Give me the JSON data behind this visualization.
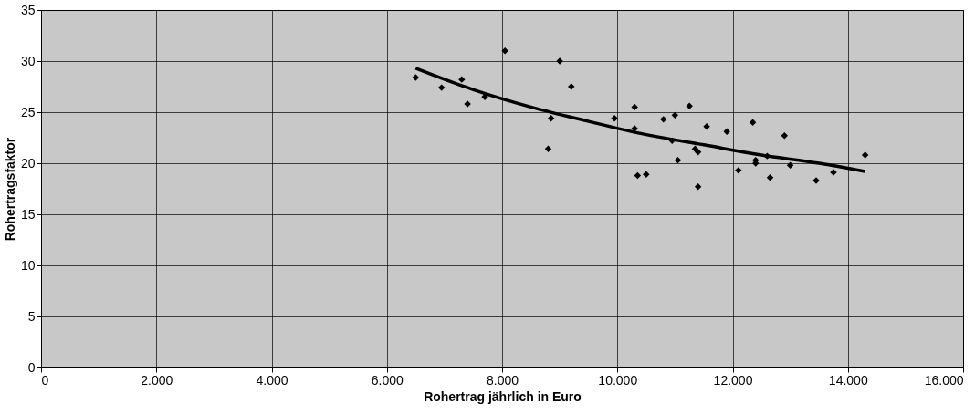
{
  "chart_data": {
    "type": "scatter",
    "xlabel": "Rohertrag jährlich in Euro",
    "ylabel": "Rohertragsfaktor",
    "xlim": [
      0,
      16000
    ],
    "ylim": [
      0,
      35
    ],
    "xticks": [
      {
        "value": 0,
        "label": "0"
      },
      {
        "value": 2000,
        "label": "2.000"
      },
      {
        "value": 4000,
        "label": "4.000"
      },
      {
        "value": 6000,
        "label": "6.000"
      },
      {
        "value": 8000,
        "label": "8.000"
      },
      {
        "value": 10000,
        "label": "10.000"
      },
      {
        "value": 12000,
        "label": "12.000"
      },
      {
        "value": 14000,
        "label": "14.000"
      },
      {
        "value": 16000,
        "label": "16.000"
      }
    ],
    "yticks": [
      0,
      5,
      10,
      15,
      20,
      25,
      30,
      35
    ],
    "grid": true,
    "marker": "diamond",
    "series": [
      {
        "color": "#000000",
        "x": [
          6500,
          6950,
          7300,
          7400,
          7700,
          8050,
          8800,
          8850,
          9000,
          9200,
          9950,
          10300,
          10300,
          10350,
          10500,
          10800,
          10950,
          11000,
          11050,
          11250,
          11350,
          11400,
          11400,
          11550,
          11900,
          12100,
          12350,
          12400,
          12400,
          12600,
          12650,
          12900,
          13000,
          13450,
          13750,
          14300
        ],
        "values": [
          28.4,
          27.4,
          28.2,
          25.8,
          26.5,
          31.0,
          21.4,
          24.4,
          30.0,
          27.5,
          24.4,
          23.4,
          25.5,
          18.8,
          18.9,
          24.3,
          22.2,
          24.7,
          20.3,
          25.6,
          21.4,
          21.1,
          17.7,
          23.6,
          23.1,
          19.3,
          24.0,
          20.3,
          20.0,
          20.7,
          18.6,
          22.7,
          19.8,
          18.3,
          19.1,
          20.8
        ]
      },
      {
        "type": "line",
        "marker": "none",
        "line_style": "solid",
        "color": "#000000",
        "x": [
          6500,
          7500,
          8500,
          9500,
          10500,
          11500,
          12500,
          13500,
          14300
        ],
        "values": [
          29.3,
          27.2,
          25.5,
          24.1,
          22.8,
          21.8,
          20.8,
          20.0,
          19.2
        ]
      }
    ]
  }
}
